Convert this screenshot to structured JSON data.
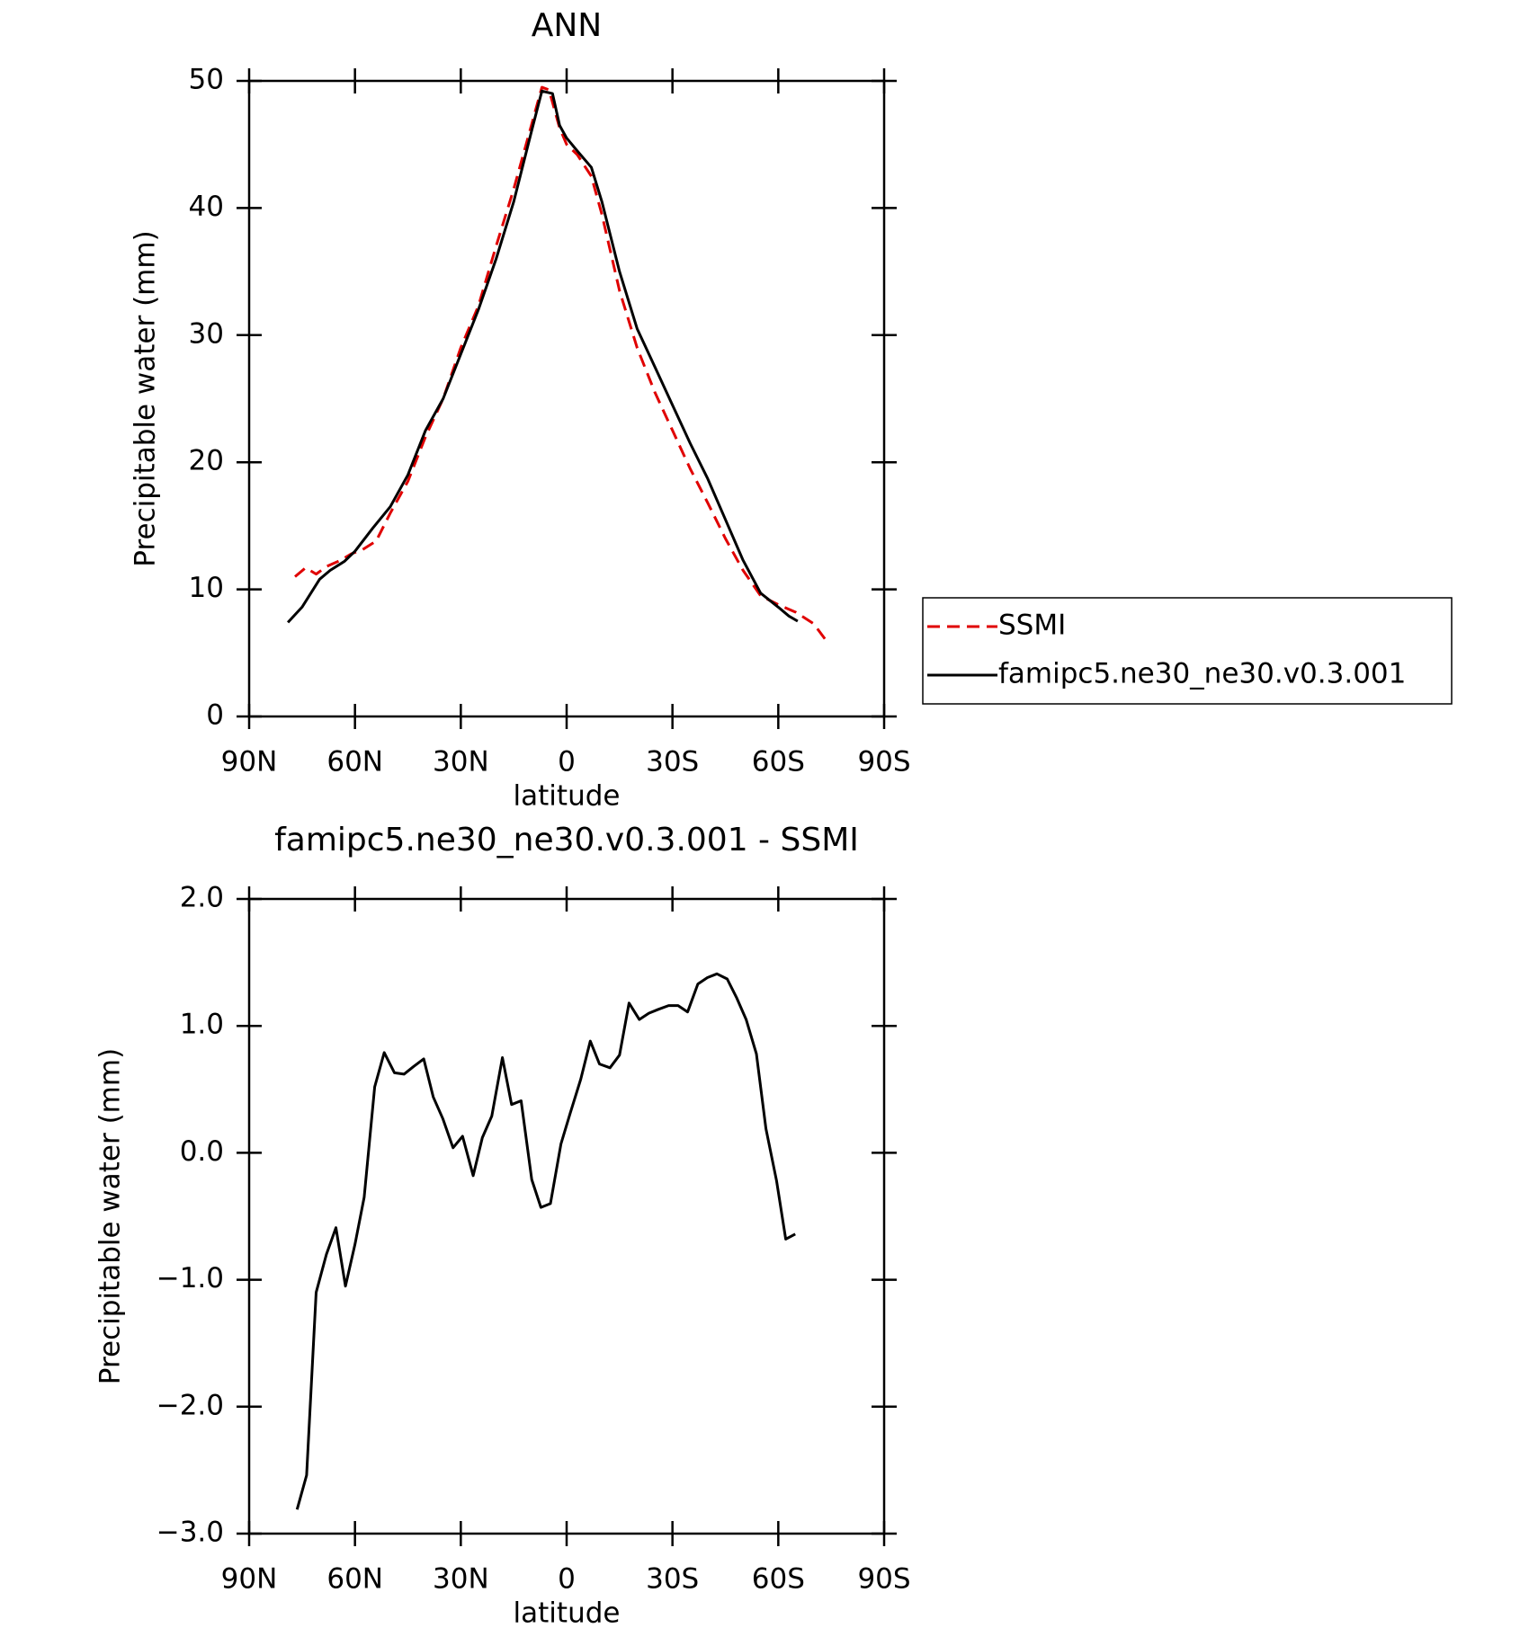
{
  "chart_data": [
    {
      "type": "line",
      "title": "ANN",
      "xlabel": "latitude",
      "ylabel": "Precipitable water (mm)",
      "xlim": [
        90,
        -90
      ],
      "xticks": [
        {
          "value": 90,
          "label": "90N"
        },
        {
          "value": 60,
          "label": "60N"
        },
        {
          "value": 30,
          "label": "30N"
        },
        0,
        {
          "value": -30,
          "label": "30S"
        },
        {
          "value": -60,
          "label": "60S"
        },
        {
          "value": -90,
          "label": "90S"
        }
      ],
      "ylim": [
        0,
        50
      ],
      "yticks": [
        0,
        10,
        20,
        30,
        40,
        50
      ],
      "series": [
        {
          "name": "SSMI",
          "color": "#e00000",
          "dash": true,
          "x": [
            77,
            74,
            71,
            68,
            64,
            61,
            58,
            54,
            50,
            45,
            40,
            35,
            30,
            25,
            20,
            15,
            10,
            7,
            5,
            2,
            0,
            -3,
            -7,
            -10,
            -15,
            -20,
            -25,
            -30,
            -35,
            -40,
            -45,
            -50,
            -55,
            -60,
            -65,
            -70,
            -73.5
          ],
          "values": [
            11,
            11.7,
            11.2,
            11.8,
            12.3,
            12.8,
            13.1,
            13.8,
            16,
            18.5,
            22,
            25,
            29,
            32.3,
            37,
            41.5,
            46.5,
            49.5,
            49.3,
            46.3,
            45,
            44.2,
            42.5,
            39.5,
            33.5,
            29,
            25.5,
            22.5,
            19.5,
            16.8,
            14,
            11.5,
            9.5,
            8.8,
            8.2,
            7.3,
            6
          ]
        },
        {
          "name": "famipc5.ne30_ne30.v0.3.001",
          "color": "#000000",
          "dash": false,
          "x": [
            79,
            75,
            70,
            67,
            63,
            60,
            55,
            50,
            45,
            40,
            35,
            30,
            25,
            20,
            15,
            10,
            7,
            4,
            2,
            0,
            -3,
            -7,
            -10,
            -15,
            -20,
            -25,
            -30,
            -35,
            -40,
            -45,
            -50,
            -55,
            -60,
            -63,
            -65.5
          ],
          "values": [
            7.4,
            8.6,
            10.8,
            11.5,
            12.2,
            13,
            14.8,
            16.5,
            19,
            22.5,
            25,
            28.5,
            32,
            36,
            40.5,
            46,
            49.2,
            49,
            46.5,
            45.5,
            44.5,
            43.2,
            40.5,
            35,
            30.5,
            27.5,
            24.5,
            21.5,
            18.7,
            15.5,
            12.3,
            9.7,
            8.6,
            7.9,
            7.5
          ]
        }
      ]
    },
    {
      "type": "line",
      "title": "famipc5.ne30_ne30.v0.3.001 - SSMI",
      "xlabel": "latitude",
      "ylabel": "Precipitable water (mm)",
      "xlim": [
        90,
        -90
      ],
      "xticks": [
        {
          "value": 90,
          "label": "90N"
        },
        {
          "value": 60,
          "label": "60N"
        },
        {
          "value": 30,
          "label": "30N"
        },
        0,
        {
          "value": -30,
          "label": "30S"
        },
        {
          "value": -60,
          "label": "60S"
        },
        {
          "value": -90,
          "label": "90S"
        }
      ],
      "ylim": [
        -3,
        2
      ],
      "yticks": [
        {
          "value": -3,
          "label": "−3.0"
        },
        {
          "value": -2,
          "label": "−2.0"
        },
        {
          "value": -1,
          "label": "−1.0"
        },
        {
          "value": 0,
          "label": "0.0"
        },
        {
          "value": 1,
          "label": "1.0"
        },
        {
          "value": 2,
          "label": "2.0"
        }
      ],
      "series": [
        {
          "color": "#000000",
          "dash": false,
          "x": [
            76.4,
            73.7,
            71.0,
            68.1,
            65.4,
            62.7,
            60.0,
            57.4,
            54.4,
            51.7,
            48.8,
            46.1,
            43.4,
            40.5,
            37.8,
            35.1,
            32.2,
            29.5,
            26.5,
            23.9,
            21.2,
            18.2,
            15.6,
            12.9,
            9.9,
            7.3,
            4.6,
            1.6,
            -1.0,
            -4.0,
            -6.7,
            -9.3,
            -12.3,
            -15.0,
            -17.7,
            -20.6,
            -23.3,
            -26.0,
            -28.9,
            -31.6,
            -34.3,
            -37.2,
            -39.9,
            -42.6,
            -45.5,
            -48.2,
            -50.9,
            -53.8,
            -56.5,
            -59.5,
            -62.1,
            -64.8
          ],
          "values": [
            -2.81,
            -2.54,
            -1.1,
            -0.8,
            -0.59,
            -1.05,
            -0.72,
            -0.35,
            0.52,
            0.79,
            0.63,
            0.62,
            0.68,
            0.74,
            0.44,
            0.27,
            0.04,
            0.13,
            -0.18,
            0.12,
            0.29,
            0.75,
            0.38,
            0.41,
            -0.21,
            -0.43,
            -0.4,
            0.07,
            0.31,
            0.58,
            0.88,
            0.7,
            0.67,
            0.77,
            1.18,
            1.05,
            1.1,
            1.13,
            1.16,
            1.16,
            1.11,
            1.33,
            1.38,
            1.41,
            1.37,
            1.22,
            1.05,
            0.78,
            0.19,
            -0.22,
            -0.68,
            -0.64
          ]
        }
      ]
    }
  ]
}
